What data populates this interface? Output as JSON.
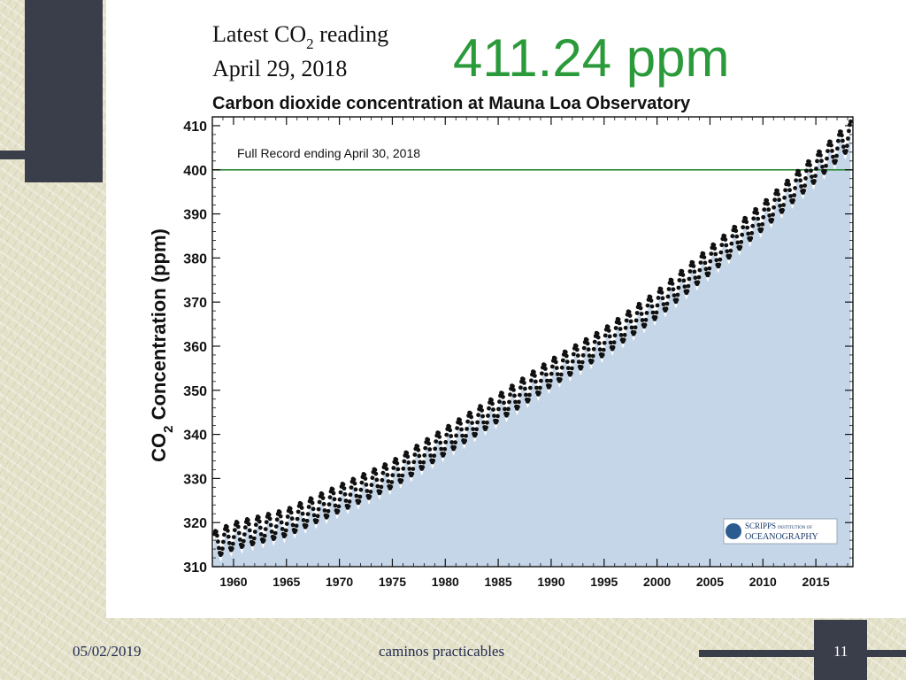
{
  "slide": {
    "date": "05/02/2019",
    "footer": "caminos practicables",
    "page_number": "11"
  },
  "header": {
    "latest_label_prefix": "Latest CO",
    "latest_label_sub": "2",
    "latest_label_suffix": " reading",
    "latest_date": "April 29, 2018",
    "reading_value": "411.24 ppm",
    "reading_color": "#2a9a3a"
  },
  "chart_data": {
    "type": "scatter",
    "title": "Carbon dioxide concentration at Mauna Loa Observatory",
    "annotation": "Full Record ending April 30, 2018",
    "ylabel_prefix": "CO",
    "ylabel_sub": "2",
    "ylabel_suffix": " Concentration (ppm)",
    "xlim": [
      1958.0,
      2018.5
    ],
    "ylim": [
      310,
      412
    ],
    "x_ticks": [
      1960,
      1965,
      1970,
      1975,
      1980,
      1985,
      1990,
      1995,
      2000,
      2005,
      2010,
      2015
    ],
    "y_ticks": [
      310,
      320,
      330,
      340,
      350,
      360,
      370,
      380,
      390,
      400,
      410
    ],
    "reference_line": {
      "value": 400,
      "color": "#2e8b3a"
    },
    "fill_color": "#c5d6e9",
    "point_color": "#111111",
    "grid": false,
    "logo_text_1": "SCRIPPS",
    "logo_text_2": "INSTITUTION OF",
    "logo_text_3": "OCEANOGRAPHY",
    "trend_points": [
      [
        1958.2,
        315.0
      ],
      [
        1960,
        317.0
      ],
      [
        1965,
        320.0
      ],
      [
        1970,
        325.5
      ],
      [
        1975,
        331.0
      ],
      [
        1980,
        338.5
      ],
      [
        1985,
        346.0
      ],
      [
        1990,
        354.0
      ],
      [
        1995,
        361.0
      ],
      [
        2000,
        369.5
      ],
      [
        2005,
        379.5
      ],
      [
        2010,
        389.5
      ],
      [
        2015,
        400.5
      ],
      [
        2018.3,
        408.0
      ]
    ],
    "seasonal_amplitude": 3.0
  }
}
